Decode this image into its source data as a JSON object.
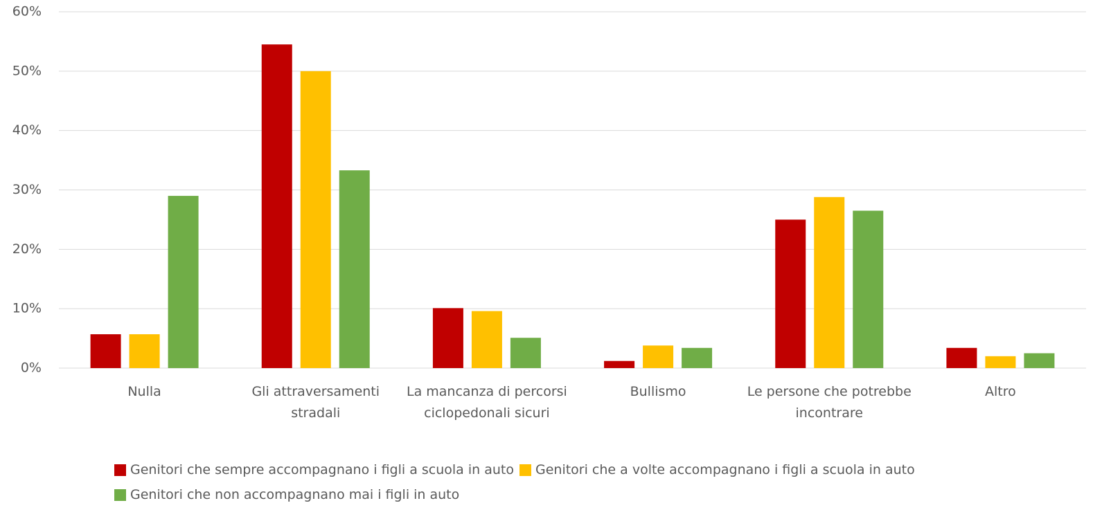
{
  "chart_data": {
    "type": "bar",
    "categories": [
      "Nulla",
      "Gli attraversamenti stradali",
      "La mancanza di percorsi ciclopedonali sicuri",
      "Bullismo",
      "Le persone che potrebbe incontrare",
      "Altro"
    ],
    "series": [
      {
        "name": "Genitori che sempre accompagnano i figli a scuola in auto",
        "color": "#c00000",
        "values": [
          5.7,
          54.5,
          10.1,
          1.2,
          25.0,
          3.4
        ]
      },
      {
        "name": "Genitori che a volte accompagnano i figli a scuola in auto",
        "color": "#ffc000",
        "values": [
          5.7,
          50.0,
          9.6,
          3.8,
          28.8,
          2.0
        ]
      },
      {
        "name": "Genitori che non accompagnano mai i figli in auto",
        "color": "#70ad47",
        "values": [
          29.0,
          33.3,
          5.1,
          3.4,
          26.5,
          2.5
        ]
      }
    ],
    "ylim": [
      0,
      60
    ],
    "yticks": [
      {
        "value": 0,
        "label": "0%"
      },
      {
        "value": 10,
        "label": "10%"
      },
      {
        "value": 20,
        "label": "20%"
      },
      {
        "value": 30,
        "label": "30%"
      },
      {
        "value": 40,
        "label": "40%"
      },
      {
        "value": 50,
        "label": "50%"
      },
      {
        "value": 60,
        "label": "60%"
      }
    ],
    "grid": true,
    "legend": "bottom"
  }
}
